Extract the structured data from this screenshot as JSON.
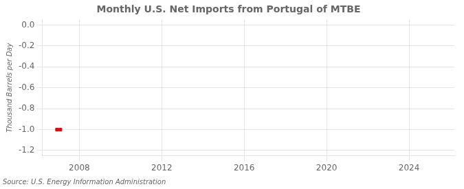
{
  "chart_data": {
    "type": "line",
    "title": "Monthly U.S. Net Imports from Portugal of MTBE",
    "ylabel": "Thousand Barrels per Day",
    "source": "Source: U.S. Energy Information Administration",
    "x": [
      2006.92,
      2007.08
    ],
    "values": [
      -1.0,
      -1.0
    ],
    "color": "#cc1111",
    "marker": "square",
    "line_style": "dotted",
    "xlim": [
      2006.2,
      2026.2
    ],
    "ylim": [
      -1.25,
      0.05
    ],
    "xticks": [
      2008,
      2012,
      2016,
      2020,
      2024
    ],
    "yticks": [
      {
        "value": 0.0,
        "label": "0.0"
      },
      -0.2,
      -0.4,
      -0.6,
      -0.8,
      {
        "value": -1.0,
        "label": "-1.0"
      },
      -1.2
    ],
    "grid": true
  }
}
